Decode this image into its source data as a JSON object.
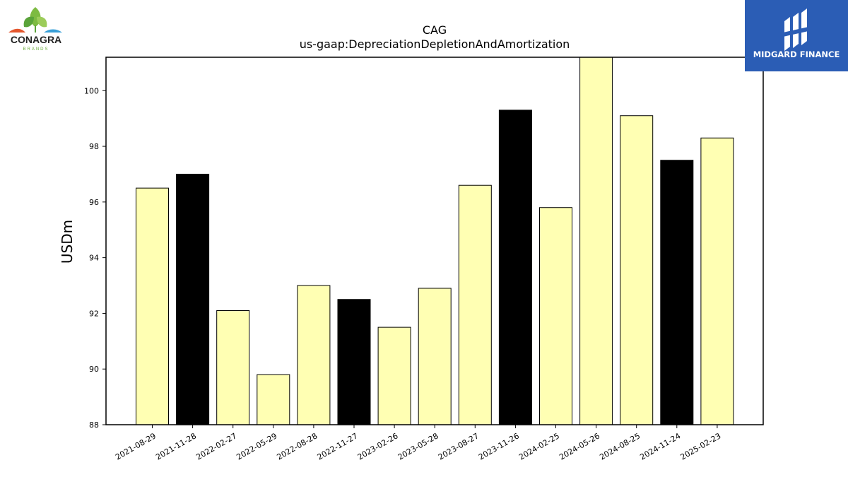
{
  "branding": {
    "left_logo_name": "CONAGRA",
    "left_logo_sub": "BRANDS",
    "right_logo_name": "MIDGARD FINANCE",
    "right_logo_color": "#2b5db5"
  },
  "chart_data": {
    "type": "bar",
    "title": "CAG",
    "subtitle": "us-gaap:DepreciationDepletionAndAmortization",
    "xlabel": "",
    "ylabel": "USDm",
    "ylim": [
      88,
      101.2
    ],
    "yticks": [
      88,
      90,
      92,
      94,
      96,
      98,
      100
    ],
    "grid": false,
    "categories": [
      "2021-08-29",
      "2021-11-28",
      "2022-02-27",
      "2022-05-29",
      "2022-08-28",
      "2022-11-27",
      "2023-02-26",
      "2023-05-28",
      "2023-08-27",
      "2023-11-26",
      "2024-02-25",
      "2024-05-26",
      "2024-08-25",
      "2024-11-24",
      "2025-02-23"
    ],
    "values": [
      96.5,
      97.0,
      92.1,
      89.8,
      93.0,
      92.5,
      91.5,
      92.9,
      96.6,
      99.3,
      95.8,
      101.3,
      99.1,
      97.5,
      98.3
    ],
    "bar_colors": [
      "#ffffb3",
      "#000000",
      "#ffffb3",
      "#ffffb3",
      "#ffffb3",
      "#000000",
      "#ffffb3",
      "#ffffb3",
      "#ffffb3",
      "#000000",
      "#ffffb3",
      "#ffffb3",
      "#ffffb3",
      "#000000",
      "#ffffb3"
    ]
  }
}
